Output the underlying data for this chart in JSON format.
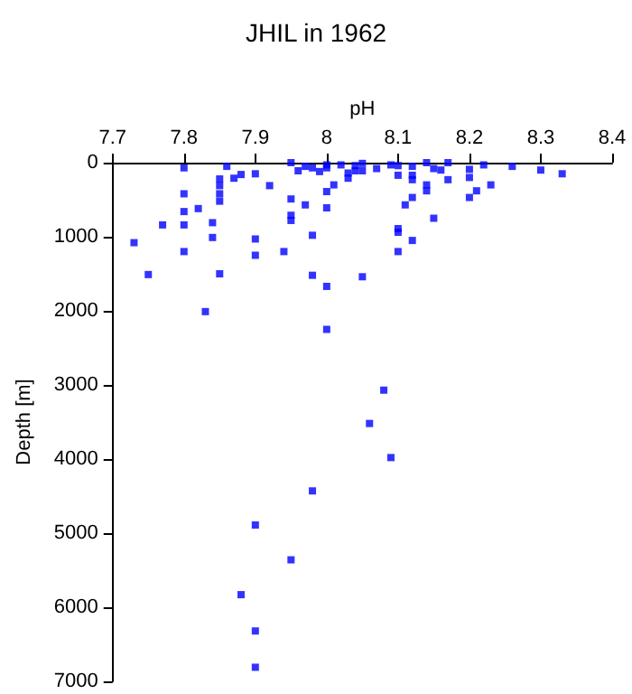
{
  "chart_data": {
    "type": "scatter",
    "title": "JHIL in 1962",
    "xlabel": "pH",
    "ylabel": "Depth [m]",
    "x": [
      7.8,
      7.8,
      7.8,
      7.8,
      7.8,
      7.73,
      7.75,
      7.77,
      7.82,
      7.83,
      7.84,
      7.84,
      7.85,
      7.85,
      7.85,
      7.85,
      7.85,
      7.86,
      7.87,
      7.88,
      7.9,
      7.9,
      7.9,
      7.92,
      7.94,
      7.95,
      7.95,
      7.95,
      7.95,
      7.96,
      7.97,
      7.97,
      7.98,
      7.98,
      7.98,
      7.99,
      8.0,
      8.0,
      8.0,
      8.0,
      8.0,
      8.0,
      8.01,
      8.02,
      8.03,
      8.03,
      8.04,
      8.04,
      8.05,
      8.05,
      8.05,
      8.07,
      8.09,
      8.1,
      8.1,
      8.1,
      8.1,
      8.1,
      8.11,
      8.12,
      8.12,
      8.12,
      8.12,
      8.12,
      8.14,
      8.14,
      8.14,
      8.15,
      8.15,
      8.16,
      8.17,
      8.17,
      8.2,
      8.2,
      8.2,
      8.21,
      8.22,
      8.23,
      8.26,
      8.3,
      8.33,
      8.08,
      8.06,
      8.09,
      7.98,
      7.9,
      7.95,
      7.88,
      7.9,
      7.9
    ],
    "series": [
      {
        "color": "#0000ff",
        "values": [
          70,
          420,
          660,
          840,
          1200,
          1080,
          1510,
          840,
          620,
          2010,
          810,
          1010,
          220,
          310,
          420,
          520,
          1500,
          50,
          210,
          160,
          150,
          1030,
          1250,
          310,
          1200,
          0,
          490,
          710,
          780,
          110,
          570,
          50,
          70,
          980,
          1520,
          120,
          30,
          70,
          390,
          610,
          1670,
          2250,
          300,
          30,
          140,
          210,
          40,
          110,
          10,
          110,
          1540,
          80,
          30,
          40,
          170,
          890,
          940,
          1200,
          570,
          50,
          170,
          230,
          470,
          1050,
          0,
          300,
          380,
          80,
          750,
          100,
          0,
          230,
          90,
          200,
          470,
          380,
          30,
          300,
          50,
          100,
          150,
          3070,
          3520,
          3980,
          4430,
          4890,
          5360,
          5830,
          6320,
          6810
        ]
      }
    ],
    "xlim": [
      7.7,
      8.4
    ],
    "xticks": [
      7.7,
      7.8,
      7.9,
      8,
      8.1,
      8.2,
      8.3,
      8.4
    ],
    "ylim": [
      7000,
      0
    ],
    "yticks": [
      0,
      1000,
      2000,
      3000,
      4000,
      5000,
      6000,
      7000
    ],
    "marker": "square",
    "grid": false
  }
}
